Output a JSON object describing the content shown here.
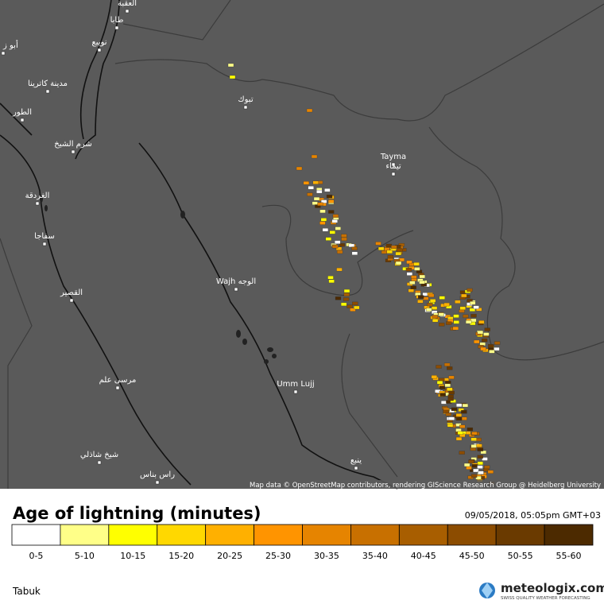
{
  "map": {
    "places": [
      "العقبة",
      "طابا",
      "نويبع",
      "أبو ز",
      "مدينة كاترينا",
      "الطور",
      "شرم الشيخ",
      "الغردقة",
      "سفاجا",
      "القصير",
      "مرسى علم",
      "شيخ شاذلي",
      "راس بناس",
      "تبوك",
      "Tayma",
      "تيماء",
      "Wajh الوجه",
      "Umm Lujj",
      "ينبع"
    ],
    "attribution": "Map data © OpenStreetMap contributors, rendering GIScience Research Group @ Heidelberg University"
  },
  "legend": {
    "title": "Age of lightning (minutes)",
    "timestamp": "09/05/2018, 05:05pm GMT+03",
    "bins": [
      {
        "label": "0-5",
        "color": "#ffffff"
      },
      {
        "label": "5-10",
        "color": "#ffff88"
      },
      {
        "label": "10-15",
        "color": "#ffff00"
      },
      {
        "label": "15-20",
        "color": "#ffd800"
      },
      {
        "label": "20-25",
        "color": "#ffb000"
      },
      {
        "label": "25-30",
        "color": "#ff9400"
      },
      {
        "label": "30-35",
        "color": "#e68400"
      },
      {
        "label": "35-40",
        "color": "#c87000"
      },
      {
        "label": "40-45",
        "color": "#a85e00"
      },
      {
        "label": "45-50",
        "color": "#8c4c00"
      },
      {
        "label": "50-55",
        "color": "#6a3a00"
      },
      {
        "label": "55-60",
        "color": "#4c2a00"
      }
    ]
  },
  "footer": {
    "region": "Tabuk",
    "brand": "meteologix.com",
    "tagline": "SWISS QUALITY WEATHER FORECASTING"
  }
}
